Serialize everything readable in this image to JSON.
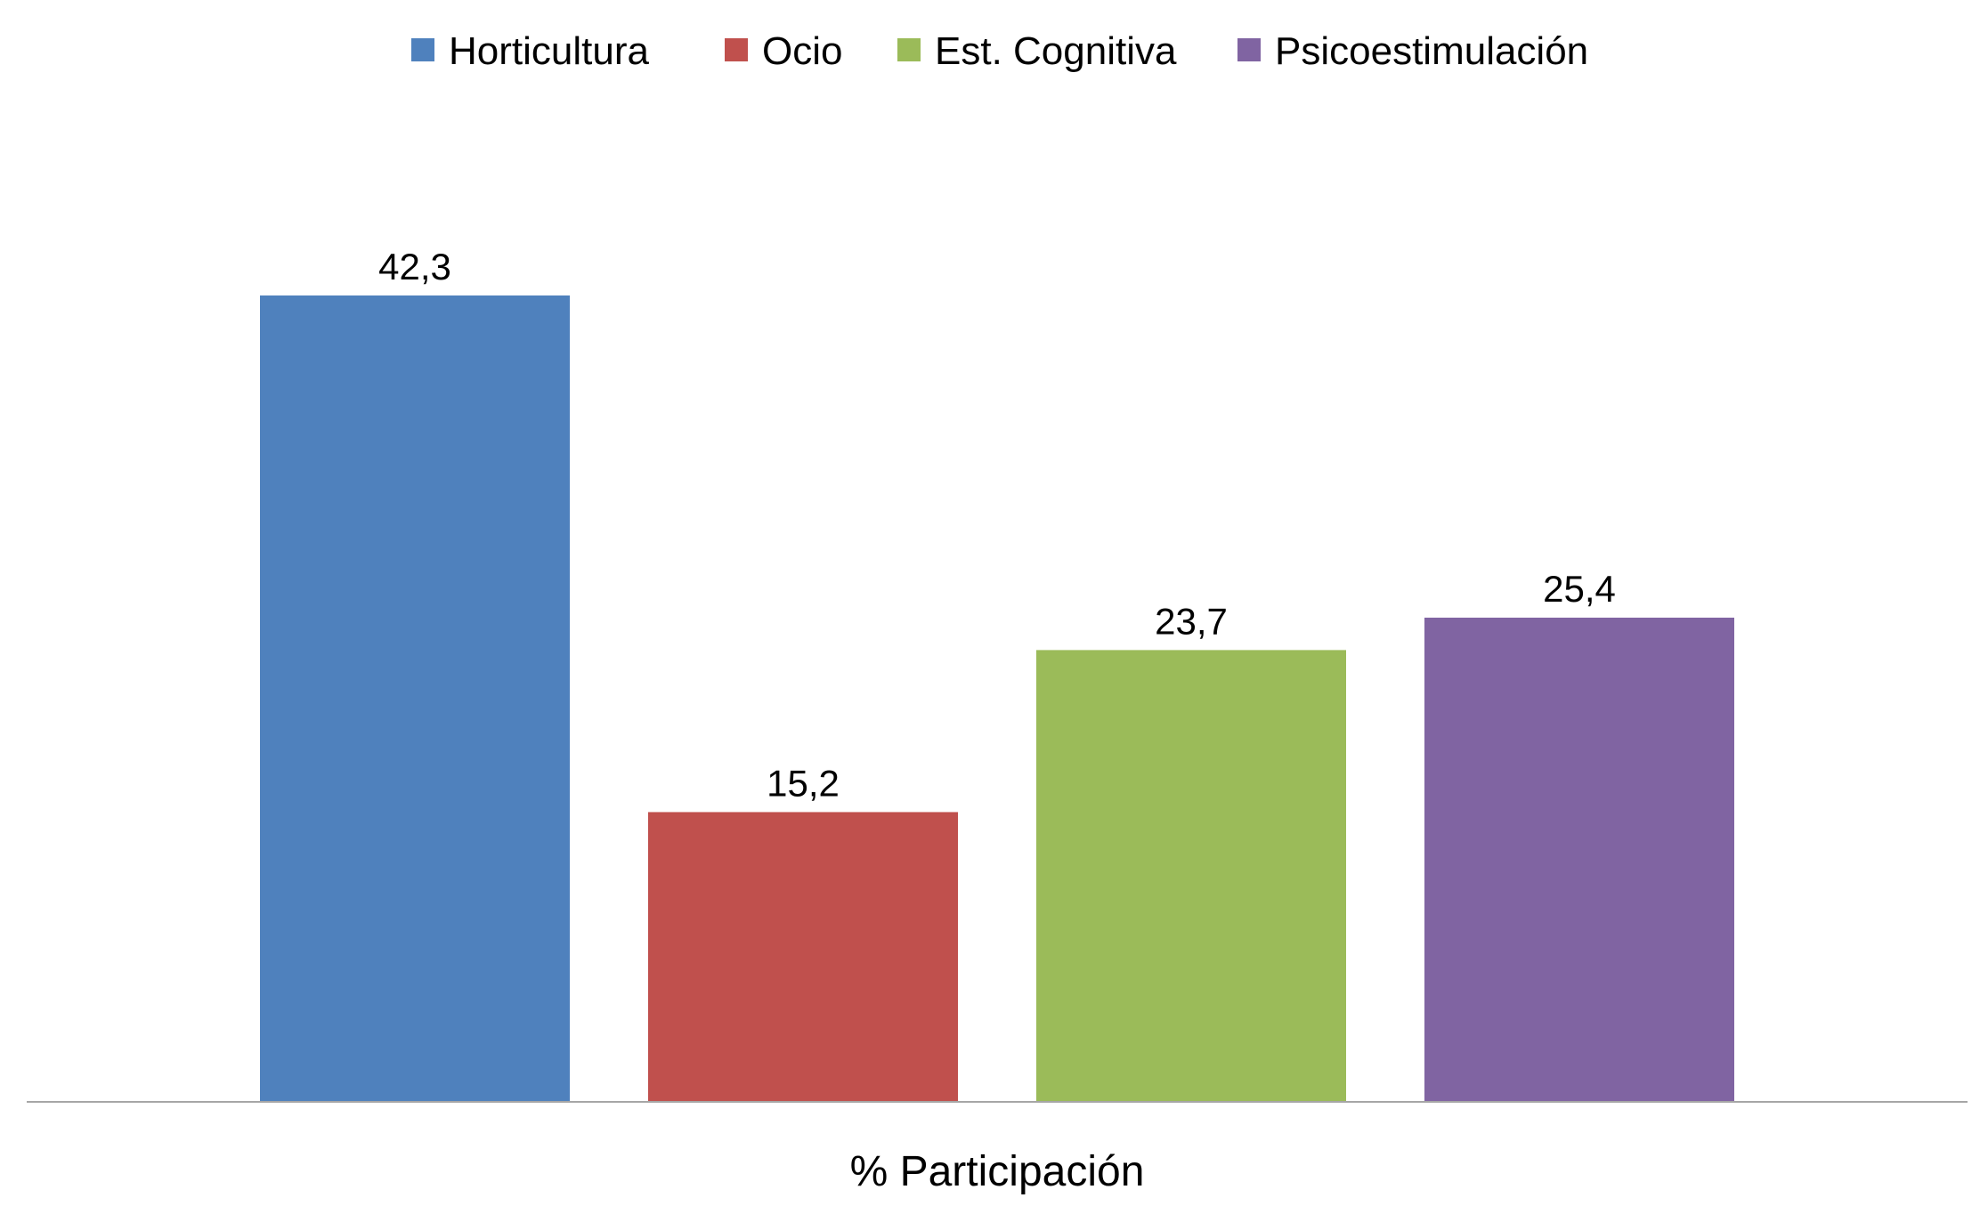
{
  "chart_data": {
    "type": "bar",
    "categories": [
      "% Participación"
    ],
    "series": [
      {
        "name": "Horticultura",
        "values": [
          42.3
        ],
        "label": "42,3",
        "color": "#4F81BD"
      },
      {
        "name": "Ocio",
        "values": [
          15.2
        ],
        "label": "15,2",
        "color": "#C0504D"
      },
      {
        "name": "Est. Cognitiva",
        "values": [
          23.7
        ],
        "label": "23,7",
        "color": "#9BBB59"
      },
      {
        "name": "Psicoestimulación",
        "values": [
          25.4
        ],
        "label": "25,4",
        "color": "#8064A2"
      }
    ],
    "title": "",
    "xlabel": "",
    "ylabel": "",
    "ylim": [
      0,
      50
    ],
    "grid": false,
    "legend_position": "top",
    "axis_color": "#A6A6A6"
  }
}
